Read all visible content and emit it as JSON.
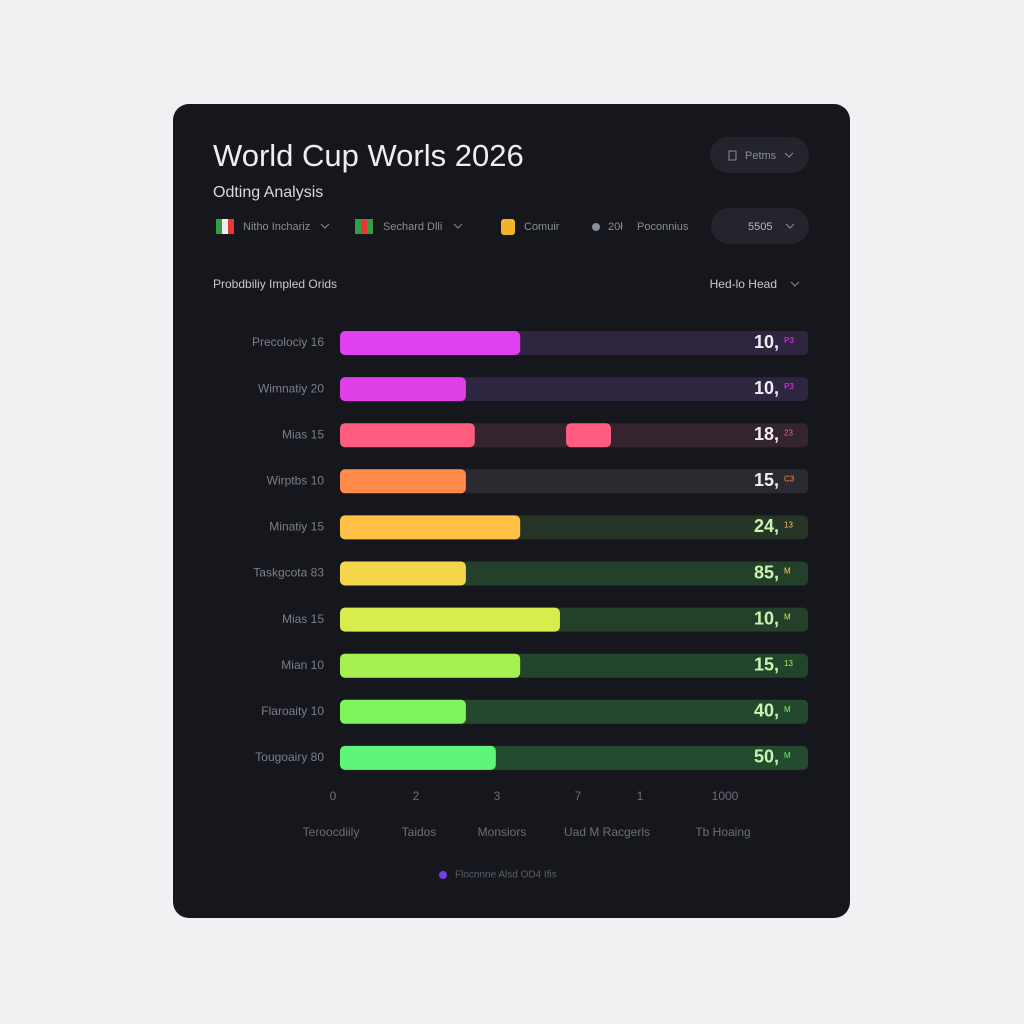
{
  "header": {
    "title": "World Cup Worls 2026",
    "subtitle": "Odting Analysis",
    "button": "Petms"
  },
  "filters": [
    "Nitho Inchariz",
    "Sechard Dlli",
    "Comuir",
    "20ł",
    "Poconnius",
    "5505"
  ],
  "section": {
    "label": "Probdbiliy Impled Orids",
    "dropdown": "Hed-lo Head"
  },
  "chart_data": {
    "type": "bar",
    "orientation": "horizontal",
    "categories": [
      "Precolociy 16",
      "Wimnatiy 20",
      "Mias 15",
      "Wirptbs 10",
      "Minatiy 15",
      "Taskgcota 83",
      "Mias 15",
      "Mian 10",
      "Flaroaity 10",
      "Tougoairy 80"
    ],
    "values": [
      38.5,
      26.9,
      28.8,
      26.9,
      38.5,
      26.9,
      47,
      38.5,
      26.9,
      33.3
    ],
    "colors": [
      "#e040f0",
      "#e040e8",
      "#ff5c80",
      "#ff8a4c",
      "#ffc247",
      "#f5d64a",
      "#d8ec4c",
      "#a6f052",
      "#7ef55a",
      "#5ef57a"
    ],
    "track_colors": [
      "#2f2540",
      "#2e2540",
      "#33242e",
      "#2a2a30",
      "#263526",
      "#24402a",
      "#22402a",
      "#23442c",
      "#24482e",
      "#244a30"
    ],
    "second_bar": {
      "index": 2,
      "from": 48.3,
      "to": 57.9
    },
    "xlim": [
      0,
      100
    ],
    "end_labels": [
      "10,",
      "10,",
      "18,",
      "15,",
      "24,",
      "85,",
      "10,",
      "15,",
      "40,",
      "50,"
    ],
    "end_suffixes": [
      "P3",
      "P3",
      "23",
      "C3",
      "13",
      "M",
      "M",
      "13",
      "M",
      "M"
    ],
    "axis_labels": [
      "0",
      "2",
      "3",
      "7",
      "1",
      "1000"
    ],
    "legend": {
      "label": "Flocnnne Alsd OD4 Ifis",
      "color": "#7c3aed"
    }
  },
  "footer_labels": [
    "Teroocdiily",
    "Taidos",
    "Monsiors",
    "Uad M Racgerls",
    "Tb Hoaing"
  ]
}
